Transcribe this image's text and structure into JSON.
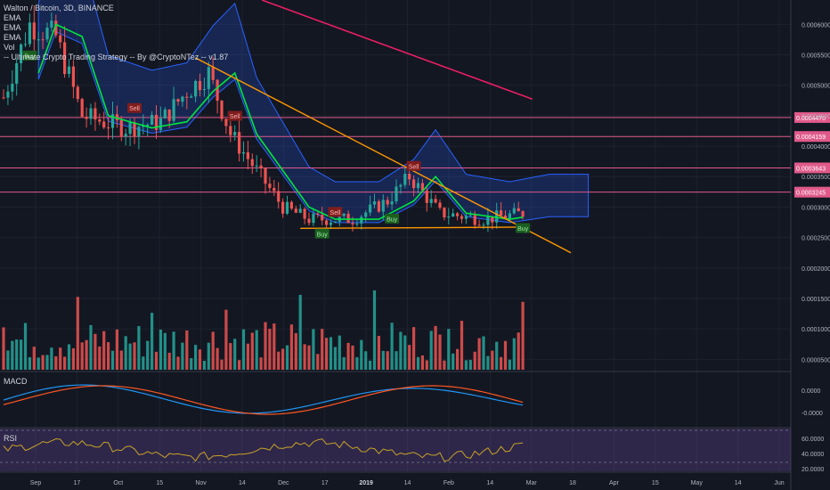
{
  "legend": {
    "symbol": "Walton / Bitcoin, 3D, BINANCE",
    "ind1": "EMA",
    "ind2": "EMA",
    "ind3": "EMA",
    "ind4": "Vol",
    "ind5": "-- Ultimate Crypto Trading Strategy -- By @CryptoNTez -- v1.87"
  },
  "panels": {
    "macd": "MACD",
    "rsi": "RSI"
  },
  "colors": {
    "bg": "#131722",
    "grid": "#1e222d",
    "up": "#26a69a",
    "down": "#ef5350",
    "cloud": "#2962ff",
    "ema_fast": "#00e640",
    "ema_slow": "#e91e63",
    "trend": "#ff9800",
    "hline": "#e05a8a",
    "macd": "#2196f3",
    "signal": "#ff5722",
    "rsi": "#c9a227"
  },
  "chart_data": {
    "type": "candlestick",
    "price_axis": {
      "ticks": [
        "0.0006000",
        "0.0005500",
        "0.0005000",
        "0.0004500",
        "0.0004000",
        "0.0003500",
        "0.0003000",
        "0.0002500",
        "0.0002000",
        "0.0001500",
        "0.0001000",
        "0.0000500"
      ],
      "ylim": [
        3e-05,
        0.00064
      ]
    },
    "x_ticks": [
      "Sep",
      "17",
      "Oct",
      "15",
      "Nov",
      "14",
      "Dec",
      "17",
      "2019",
      "14",
      "Feb",
      "14",
      "Mar",
      "18",
      "Apr",
      "15",
      "May",
      "14",
      "Jun"
    ],
    "horizontal_levels": [
      {
        "label": "0.0004470",
        "value": 0.000447
      },
      {
        "label": "0.0004159",
        "value": 0.0004159
      },
      {
        "label": "0.0003643",
        "value": 0.0003643
      },
      {
        "label": "0.0003245",
        "value": 0.0003245
      }
    ],
    "signals": [
      {
        "label": "Buy",
        "type": "buy"
      },
      {
        "label": "Sell",
        "type": "sell"
      },
      {
        "label": "Sell",
        "type": "sell"
      },
      {
        "label": "Sell",
        "type": "sell"
      },
      {
        "label": "Sell",
        "type": "sell"
      },
      {
        "label": "Buy",
        "type": "buy"
      },
      {
        "label": "Buy",
        "type": "buy"
      },
      {
        "label": "Buy",
        "type": "buy"
      }
    ],
    "macd_ticks": [
      "0.0000",
      "-0.0000"
    ],
    "rsi_ticks": [
      "60.0000",
      "40.0000",
      "20.0000"
    ]
  }
}
